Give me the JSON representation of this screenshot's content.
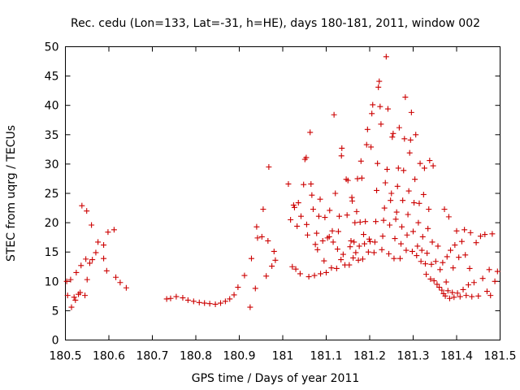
{
  "chart_data": {
    "type": "scatter",
    "title": "Rec. cedu (Lon=133, Lat=-31, h=HE), days 180-181, 2011, window 002",
    "xlabel": "GPS time / Days of year 2011",
    "ylabel": "STEC from uqrg / TECUs",
    "xlim": [
      180.5,
      181.5
    ],
    "ylim": [
      0,
      50
    ],
    "xticks": [
      "180.5",
      "180.6",
      "180.7",
      "180.8",
      "180.9",
      "181",
      "181.1",
      "181.2",
      "181.3",
      "181.4",
      "181.5"
    ],
    "yticks": [
      "0",
      "5",
      "10",
      "15",
      "20",
      "25",
      "30",
      "35",
      "40",
      "45",
      "50"
    ],
    "grid": false,
    "legend": "none",
    "marker": "+",
    "color": "#cc0000",
    "series": [
      {
        "points": [
          [
            180.503,
            10.0
          ],
          [
            180.505,
            7.6
          ],
          [
            180.512,
            10.3
          ],
          [
            180.514,
            5.6
          ],
          [
            180.52,
            7.3
          ],
          [
            180.523,
            6.8
          ],
          [
            180.525,
            11.5
          ],
          [
            180.53,
            7.8
          ],
          [
            180.534,
            8.1
          ],
          [
            180.536,
            12.7
          ],
          [
            180.538,
            22.9
          ],
          [
            180.545,
            7.6
          ],
          [
            180.547,
            13.8
          ],
          [
            180.549,
            22.0
          ],
          [
            180.55,
            10.3
          ],
          [
            180.556,
            13.1
          ],
          [
            180.56,
            19.6
          ],
          [
            180.562,
            13.7
          ],
          [
            180.57,
            14.9
          ],
          [
            180.575,
            16.7
          ],
          [
            180.588,
            13.9
          ],
          [
            180.588,
            16.2
          ],
          [
            180.595,
            11.8
          ],
          [
            180.598,
            18.4
          ],
          [
            180.612,
            18.8
          ],
          [
            180.616,
            10.7
          ],
          [
            180.626,
            9.8
          ],
          [
            180.64,
            8.9
          ],
          [
            180.733,
            7.0
          ],
          [
            180.742,
            7.1
          ],
          [
            180.755,
            7.4
          ],
          [
            180.77,
            7.2
          ],
          [
            180.782,
            6.8
          ],
          [
            180.795,
            6.6
          ],
          [
            180.808,
            6.4
          ],
          [
            180.82,
            6.3
          ],
          [
            180.832,
            6.2
          ],
          [
            180.845,
            6.1
          ],
          [
            180.857,
            6.3
          ],
          [
            180.868,
            6.6
          ],
          [
            180.878,
            7.0
          ],
          [
            180.888,
            7.7
          ],
          [
            180.897,
            9.0
          ],
          [
            180.912,
            11.0
          ],
          [
            180.925,
            5.6
          ],
          [
            180.928,
            13.9
          ],
          [
            180.937,
            8.8
          ],
          [
            180.94,
            19.3
          ],
          [
            180.942,
            17.4
          ],
          [
            180.952,
            17.6
          ],
          [
            180.955,
            22.3
          ],
          [
            180.962,
            10.9
          ],
          [
            180.966,
            16.9
          ],
          [
            180.968,
            29.5
          ],
          [
            180.975,
            12.6
          ],
          [
            180.98,
            15.1
          ],
          [
            180.983,
            13.6
          ],
          [
            181.013,
            26.6
          ],
          [
            181.018,
            20.5
          ],
          [
            181.022,
            12.5
          ],
          [
            181.025,
            23.0
          ],
          [
            181.027,
            22.6
          ],
          [
            181.03,
            12.1
          ],
          [
            181.033,
            19.4
          ],
          [
            181.036,
            23.4
          ],
          [
            181.04,
            11.3
          ],
          [
            181.042,
            21.1
          ],
          [
            181.048,
            26.5
          ],
          [
            181.051,
            30.8
          ],
          [
            181.054,
            31.1
          ],
          [
            181.055,
            19.7
          ],
          [
            181.057,
            17.9
          ],
          [
            181.06,
            10.8
          ],
          [
            181.063,
            35.4
          ],
          [
            181.065,
            26.6
          ],
          [
            181.067,
            24.7
          ],
          [
            181.07,
            22.3
          ],
          [
            181.073,
            11.0
          ],
          [
            181.075,
            16.3
          ],
          [
            181.078,
            18.2
          ],
          [
            181.08,
            15.4
          ],
          [
            181.083,
            21.1
          ],
          [
            181.086,
            24.0
          ],
          [
            181.087,
            11.3
          ],
          [
            181.092,
            16.9
          ],
          [
            181.095,
            13.5
          ],
          [
            181.097,
            20.9
          ],
          [
            181.1,
            11.5
          ],
          [
            181.103,
            17.4
          ],
          [
            181.107,
            17.6
          ],
          [
            181.108,
            22.1
          ],
          [
            181.112,
            12.3
          ],
          [
            181.114,
            18.6
          ],
          [
            181.116,
            16.7
          ],
          [
            181.118,
            38.4
          ],
          [
            181.121,
            25.0
          ],
          [
            181.124,
            12.2
          ],
          [
            181.126,
            15.5
          ],
          [
            181.128,
            18.5
          ],
          [
            181.13,
            21.1
          ],
          [
            181.134,
            13.7
          ],
          [
            181.135,
            31.4
          ],
          [
            181.136,
            32.7
          ],
          [
            181.139,
            14.6
          ],
          [
            181.143,
            12.8
          ],
          [
            181.146,
            27.4
          ],
          [
            181.148,
            21.3
          ],
          [
            181.15,
            27.2
          ],
          [
            181.153,
            12.8
          ],
          [
            181.155,
            15.9
          ],
          [
            181.157,
            16.9
          ],
          [
            181.159,
            24.3
          ],
          [
            181.16,
            23.7
          ],
          [
            181.162,
            14.0
          ],
          [
            181.164,
            16.7
          ],
          [
            181.166,
            20.0
          ],
          [
            181.168,
            14.9
          ],
          [
            181.17,
            21.9
          ],
          [
            181.172,
            27.5
          ],
          [
            181.174,
            13.6
          ],
          [
            181.176,
            16.0
          ],
          [
            181.178,
            20.1
          ],
          [
            181.18,
            30.5
          ],
          [
            181.182,
            27.6
          ],
          [
            181.184,
            13.8
          ],
          [
            181.186,
            18.0
          ],
          [
            181.188,
            16.4
          ],
          [
            181.19,
            20.2
          ],
          [
            181.193,
            33.3
          ],
          [
            181.195,
            35.9
          ],
          [
            181.197,
            15.0
          ],
          [
            181.199,
            17.2
          ],
          [
            181.201,
            16.8
          ],
          [
            181.203,
            32.9
          ],
          [
            181.205,
            38.6
          ],
          [
            181.207,
            40.1
          ],
          [
            181.21,
            14.9
          ],
          [
            181.212,
            16.7
          ],
          [
            181.214,
            20.2
          ],
          [
            181.216,
            25.5
          ],
          [
            181.218,
            30.1
          ],
          [
            181.22,
            43.1
          ],
          [
            181.222,
            44.1
          ],
          [
            181.224,
            39.8
          ],
          [
            181.226,
            36.8
          ],
          [
            181.228,
            15.4
          ],
          [
            181.23,
            17.7
          ],
          [
            181.232,
            20.4
          ],
          [
            181.234,
            22.5
          ],
          [
            181.236,
            26.8
          ],
          [
            181.238,
            48.3
          ],
          [
            181.24,
            29.1
          ],
          [
            181.242,
            39.4
          ],
          [
            181.244,
            14.7
          ],
          [
            181.246,
            19.6
          ],
          [
            181.248,
            23.8
          ],
          [
            181.25,
            25.0
          ],
          [
            181.252,
            34.6
          ],
          [
            181.254,
            35.2
          ],
          [
            181.256,
            13.9
          ],
          [
            181.258,
            17.3
          ],
          [
            181.26,
            20.6
          ],
          [
            181.262,
            21.8
          ],
          [
            181.264,
            26.2
          ],
          [
            181.266,
            29.3
          ],
          [
            181.268,
            36.2
          ],
          [
            181.27,
            13.9
          ],
          [
            181.272,
            16.4
          ],
          [
            181.274,
            19.3
          ],
          [
            181.276,
            23.8
          ],
          [
            181.278,
            28.9
          ],
          [
            181.28,
            34.3
          ],
          [
            181.282,
            41.4
          ],
          [
            181.284,
            15.3
          ],
          [
            181.286,
            17.9
          ],
          [
            181.288,
            21.4
          ],
          [
            181.29,
            25.4
          ],
          [
            181.292,
            31.9
          ],
          [
            181.294,
            34.1
          ],
          [
            181.296,
            38.8
          ],
          [
            181.298,
            15.1
          ],
          [
            181.3,
            18.5
          ],
          [
            181.302,
            23.4
          ],
          [
            181.304,
            27.4
          ],
          [
            181.306,
            35.0
          ],
          [
            181.308,
            14.4
          ],
          [
            181.31,
            16.0
          ],
          [
            181.312,
            20.0
          ],
          [
            181.314,
            23.3
          ],
          [
            181.316,
            30.1
          ],
          [
            181.318,
            13.4
          ],
          [
            181.32,
            15.3
          ],
          [
            181.322,
            17.6
          ],
          [
            181.324,
            24.8
          ],
          [
            181.326,
            29.3
          ],
          [
            181.328,
            13.0
          ],
          [
            181.33,
            11.2
          ],
          [
            181.332,
            14.8
          ],
          [
            181.334,
            19.0
          ],
          [
            181.336,
            22.3
          ],
          [
            181.338,
            30.6
          ],
          [
            181.34,
            10.4
          ],
          [
            181.342,
            12.9
          ],
          [
            181.344,
            16.7
          ],
          [
            181.346,
            29.7
          ],
          [
            181.348,
            10.1
          ],
          [
            181.352,
            13.4
          ],
          [
            181.355,
            9.5
          ],
          [
            181.357,
            16.0
          ],
          [
            181.36,
            9.0
          ],
          [
            181.362,
            12.0
          ],
          [
            181.366,
            8.5
          ],
          [
            181.368,
            13.2
          ],
          [
            181.37,
            7.9
          ],
          [
            181.372,
            22.3
          ],
          [
            181.374,
            7.5
          ],
          [
            181.376,
            9.9
          ],
          [
            181.378,
            14.2
          ],
          [
            181.38,
            8.4
          ],
          [
            181.382,
            21.0
          ],
          [
            181.384,
            7.1
          ],
          [
            181.386,
            15.3
          ],
          [
            181.39,
            8.1
          ],
          [
            181.392,
            12.3
          ],
          [
            181.394,
            7.3
          ],
          [
            181.396,
            16.2
          ],
          [
            181.4,
            18.6
          ],
          [
            181.402,
            8.0
          ],
          [
            181.405,
            14.1
          ],
          [
            181.408,
            7.4
          ],
          [
            181.412,
            16.8
          ],
          [
            181.415,
            8.6
          ],
          [
            181.418,
            18.8
          ],
          [
            181.42,
            14.5
          ],
          [
            181.422,
            7.6
          ],
          [
            181.427,
            9.4
          ],
          [
            181.43,
            12.2
          ],
          [
            181.432,
            18.3
          ],
          [
            181.435,
            7.4
          ],
          [
            181.44,
            9.8
          ],
          [
            181.445,
            16.6
          ],
          [
            181.45,
            7.5
          ],
          [
            181.455,
            17.7
          ],
          [
            181.46,
            10.5
          ],
          [
            181.465,
            18.0
          ],
          [
            181.47,
            8.3
          ],
          [
            181.475,
            12.0
          ],
          [
            181.478,
            7.6
          ],
          [
            181.482,
            18.1
          ],
          [
            181.488,
            10.0
          ],
          [
            181.494,
            11.7
          ]
        ]
      }
    ]
  }
}
